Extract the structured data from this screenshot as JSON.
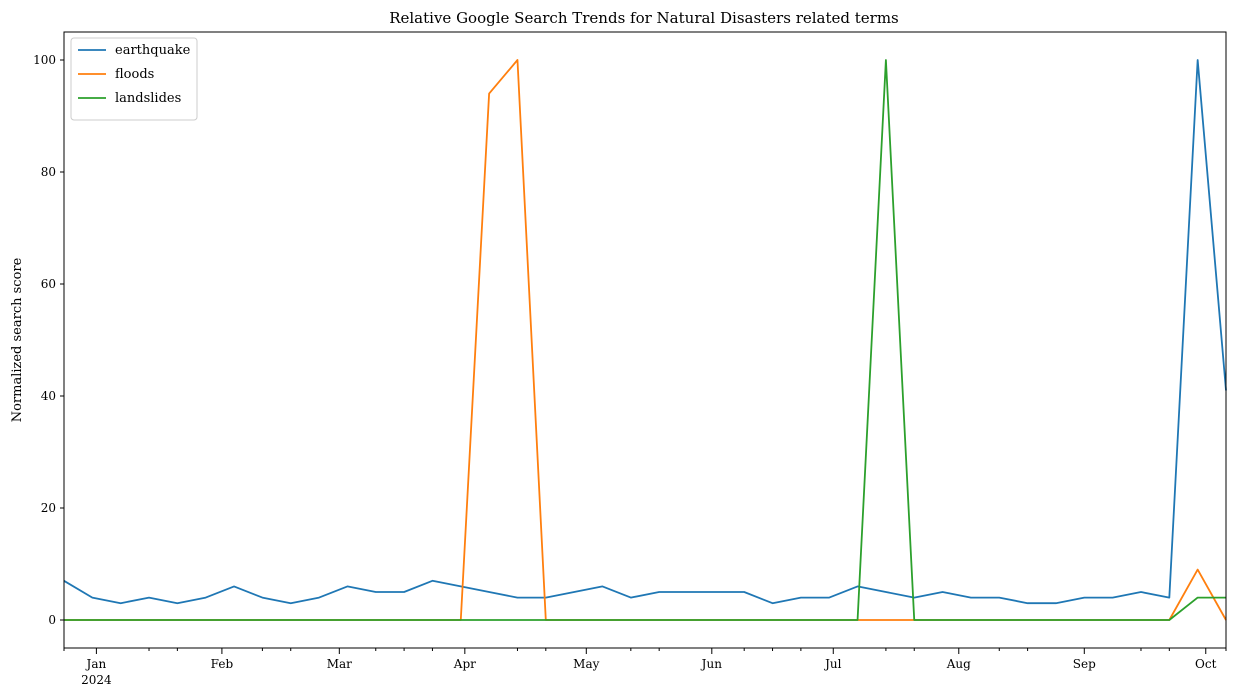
{
  "chart_data": {
    "type": "line",
    "title": "Relative Google Search Trends for Natural Disasters related terms",
    "xlabel": "",
    "ylabel": "Normalized search score",
    "x": [
      "2023-12-24",
      "2023-12-31",
      "2024-01-07",
      "2024-01-14",
      "2024-01-21",
      "2024-01-28",
      "2024-02-04",
      "2024-02-11",
      "2024-02-18",
      "2024-02-25",
      "2024-03-03",
      "2024-03-10",
      "2024-03-17",
      "2024-03-24",
      "2024-03-31",
      "2024-04-07",
      "2024-04-14",
      "2024-04-21",
      "2024-04-28",
      "2024-05-05",
      "2024-05-12",
      "2024-05-19",
      "2024-05-26",
      "2024-06-02",
      "2024-06-09",
      "2024-06-16",
      "2024-06-23",
      "2024-06-30",
      "2024-07-07",
      "2024-07-14",
      "2024-07-21",
      "2024-07-28",
      "2024-08-04",
      "2024-08-11",
      "2024-08-18",
      "2024-08-25",
      "2024-09-01",
      "2024-09-08",
      "2024-09-15",
      "2024-09-22",
      "2024-09-29",
      "2024-10-06"
    ],
    "xlim": [
      "2023-12-24",
      "2024-10-06"
    ],
    "ylim": [
      -5,
      105
    ],
    "yticks": [
      0,
      20,
      40,
      60,
      80,
      100
    ],
    "month_ticks": [
      {
        "date": "2024-01-01",
        "label": "Jan",
        "sublabel": "2024"
      },
      {
        "date": "2024-02-01",
        "label": "Feb"
      },
      {
        "date": "2024-03-01",
        "label": "Mar"
      },
      {
        "date": "2024-04-01",
        "label": "Apr"
      },
      {
        "date": "2024-05-01",
        "label": "May"
      },
      {
        "date": "2024-06-01",
        "label": "Jun"
      },
      {
        "date": "2024-07-01",
        "label": "Jul"
      },
      {
        "date": "2024-08-01",
        "label": "Aug"
      },
      {
        "date": "2024-09-01",
        "label": "Sep"
      },
      {
        "date": "2024-10-01",
        "label": "Oct"
      }
    ],
    "minor_ticks": [
      "2023-12-24",
      "2024-01-14",
      "2024-01-21",
      "2024-02-11",
      "2024-02-18",
      "2024-03-10",
      "2024-03-17",
      "2024-03-24",
      "2024-04-14",
      "2024-04-21",
      "2024-05-12",
      "2024-05-19",
      "2024-06-09",
      "2024-06-16",
      "2024-06-23",
      "2024-07-14",
      "2024-07-21",
      "2024-08-11",
      "2024-08-18",
      "2024-09-15",
      "2024-09-22",
      "2024-10-06"
    ],
    "grid": false,
    "legend_position": "top-left",
    "series": [
      {
        "name": "earthquake",
        "color": "#1f77b4",
        "values": [
          7,
          4,
          3,
          4,
          3,
          4,
          6,
          4,
          3,
          4,
          6,
          5,
          5,
          7,
          6,
          5,
          4,
          4,
          5,
          6,
          4,
          5,
          5,
          5,
          5,
          3,
          4,
          4,
          6,
          5,
          4,
          5,
          4,
          4,
          3,
          3,
          4,
          4,
          5,
          4,
          100,
          41
        ]
      },
      {
        "name": "floods",
        "color": "#ff7f0e",
        "values": [
          0,
          0,
          0,
          0,
          0,
          0,
          0,
          0,
          0,
          0,
          0,
          0,
          0,
          0,
          0,
          94,
          100,
          0,
          0,
          0,
          0,
          0,
          0,
          0,
          0,
          0,
          0,
          0,
          0,
          0,
          0,
          0,
          0,
          0,
          0,
          0,
          0,
          0,
          0,
          0,
          9,
          0
        ]
      },
      {
        "name": "landslides",
        "color": "#2ca02c",
        "values": [
          0,
          0,
          0,
          0,
          0,
          0,
          0,
          0,
          0,
          0,
          0,
          0,
          0,
          0,
          0,
          0,
          0,
          0,
          0,
          0,
          0,
          0,
          0,
          0,
          0,
          0,
          0,
          0,
          0,
          100,
          0,
          0,
          0,
          0,
          0,
          0,
          0,
          0,
          0,
          0,
          4,
          4
        ]
      }
    ]
  }
}
